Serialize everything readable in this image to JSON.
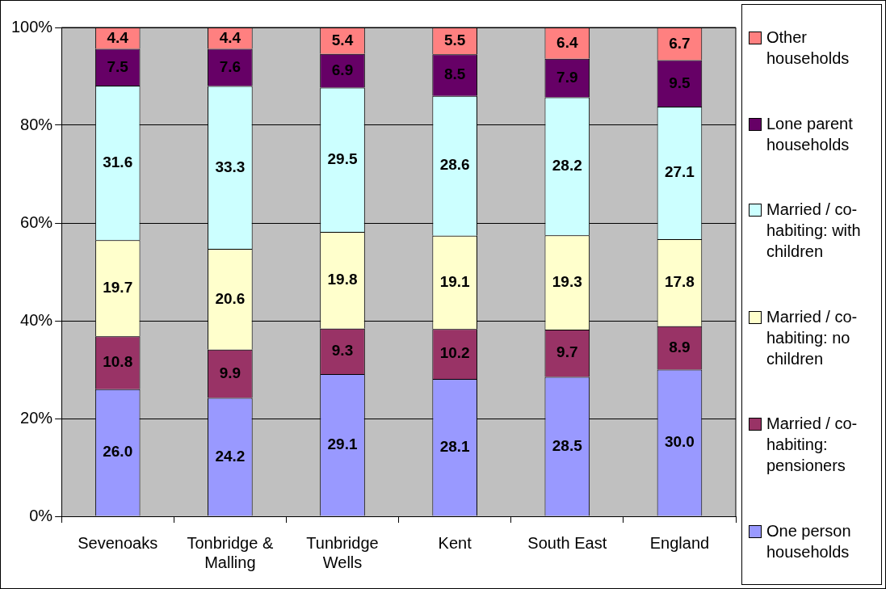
{
  "chart_data": {
    "type": "bar",
    "stacked": true,
    "categories": [
      "Sevenoaks",
      "Tonbridge & Malling",
      "Tunbridge Wells",
      "Kent",
      "South East",
      "England"
    ],
    "series": [
      {
        "name": "One person households",
        "color": "#9999ff",
        "values": [
          26.0,
          24.2,
          29.1,
          28.1,
          28.5,
          30.0
        ],
        "value_labels": [
          "26.0",
          "24.2",
          "29.1",
          "28.1",
          "28.5",
          "30.0"
        ]
      },
      {
        "name": "Married / co-habiting: pensioners",
        "color": "#993366",
        "values": [
          10.8,
          9.9,
          9.3,
          10.2,
          9.7,
          8.9
        ]
      },
      {
        "name": "Married / co-habiting: no children",
        "color": "#ffffcc",
        "values": [
          19.7,
          20.6,
          19.8,
          19.1,
          19.3,
          17.8
        ]
      },
      {
        "name": "Married / co-habiting: with children",
        "color": "#ccffff",
        "values": [
          31.6,
          33.3,
          29.5,
          28.6,
          28.2,
          27.1
        ]
      },
      {
        "name": "Lone parent households",
        "color": "#660066",
        "values": [
          7.5,
          7.6,
          6.9,
          8.5,
          7.9,
          9.5
        ]
      },
      {
        "name": "Other households",
        "color": "#ff8080",
        "values": [
          4.4,
          4.4,
          5.4,
          5.5,
          6.4,
          6.7
        ]
      }
    ],
    "ylim": [
      0,
      100
    ],
    "yticks": [
      {
        "value": 0,
        "label": "0%"
      },
      {
        "value": 20,
        "label": "20%"
      },
      {
        "value": 40,
        "label": "40%"
      },
      {
        "value": 60,
        "label": "60%"
      },
      {
        "value": 80,
        "label": "80%"
      },
      {
        "value": 100,
        "label": "100%"
      }
    ],
    "grid": "y",
    "legend": "right",
    "data_labels": true
  }
}
